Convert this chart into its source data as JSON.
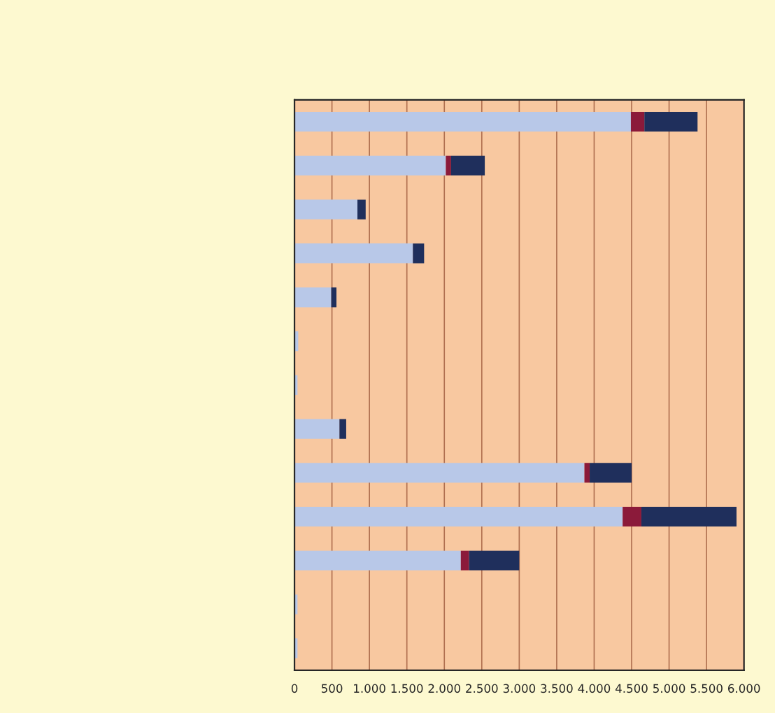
{
  "chart_data": {
    "type": "bar",
    "orientation": "horizontal",
    "stacked": true,
    "categories": [
      null,
      null,
      null,
      null,
      null,
      null,
      null,
      null,
      null,
      null,
      null,
      null,
      null
    ],
    "series": [
      {
        "color": "#b8c8e8",
        "values": [
          4490,
          2020,
          840,
          1580,
          490,
          50,
          40,
          600,
          3870,
          4380,
          2220,
          40,
          40
        ]
      },
      {
        "color": "#8b1a3a",
        "values": [
          180,
          70,
          null,
          null,
          null,
          null,
          null,
          null,
          70,
          250,
          110,
          null,
          null
        ]
      },
      {
        "color": "#1f2f5c",
        "values": [
          710,
          450,
          110,
          150,
          70,
          null,
          null,
          90,
          560,
          1270,
          670,
          null,
          null
        ]
      }
    ],
    "xlim": [
      0,
      6000
    ],
    "xticks": [
      0,
      {
        "value": 500,
        "label": "500"
      },
      {
        "value": 1000,
        "label": "1.000"
      },
      {
        "value": 1500,
        "label": "1.500"
      },
      {
        "value": 2000,
        "label": "2.000"
      },
      {
        "value": 2500,
        "label": "2.500"
      },
      {
        "value": 3000,
        "label": "3.000"
      },
      {
        "value": 3500,
        "label": "3.500"
      },
      {
        "value": 4000,
        "label": "4.000"
      },
      {
        "value": 4500,
        "label": "4.500"
      },
      {
        "value": 5000,
        "label": "5.000"
      },
      {
        "value": 5500,
        "label": "5.500"
      },
      {
        "value": 6000,
        "label": "6.000"
      }
    ],
    "grid": "x"
  }
}
